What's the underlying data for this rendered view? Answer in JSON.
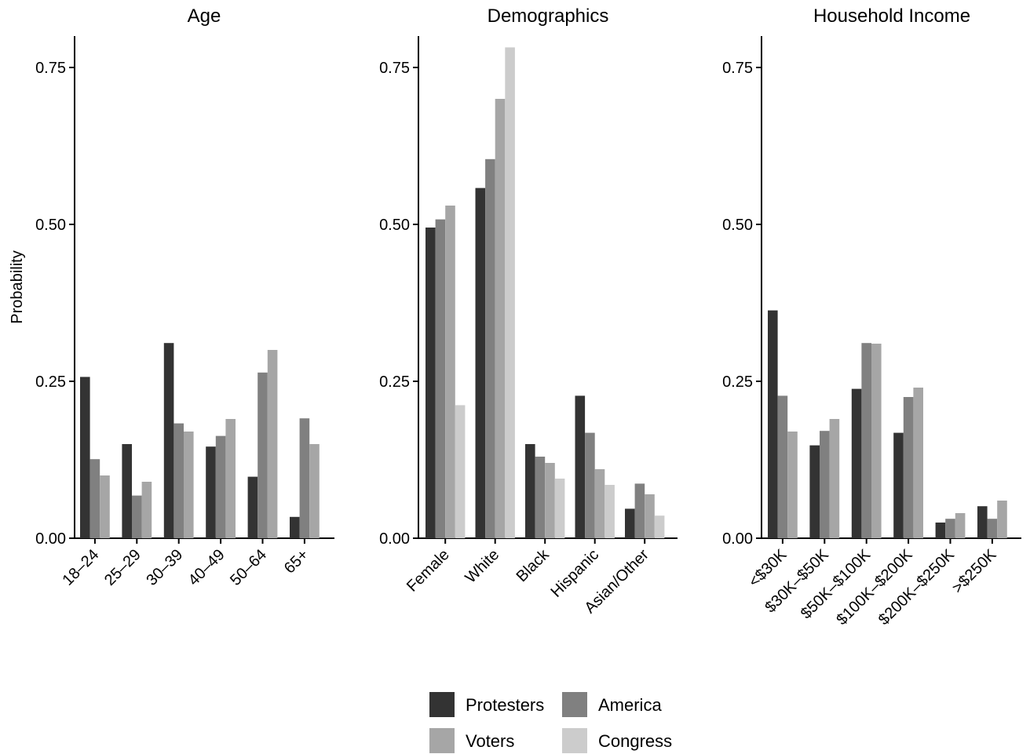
{
  "ylabel": "Probability",
  "series_colors": {
    "Protesters": "#333333",
    "America": "#808080",
    "Voters": "#a6a6a6",
    "Congress": "#cccccc"
  },
  "legend": {
    "placement": "bottom-center",
    "items": [
      "Protesters",
      "America",
      "Voters",
      "Congress"
    ]
  },
  "chart_data": [
    {
      "type": "bar",
      "title": "Age",
      "ylabel": "Probability",
      "ylim": [
        0,
        0.8
      ],
      "yticks": [
        0.0,
        0.25,
        0.5,
        0.75
      ],
      "ytick_labels": [
        "0.00",
        "0.25",
        "0.50",
        "0.75"
      ],
      "categories": [
        "18–24",
        "25–29",
        "30–39",
        "40–49",
        "50–64",
        "65+"
      ],
      "series": [
        {
          "name": "Protesters",
          "values": [
            0.257,
            0.15,
            0.311,
            0.146,
            0.098,
            0.034
          ]
        },
        {
          "name": "America",
          "values": [
            0.126,
            0.068,
            0.183,
            0.163,
            0.264,
            0.191
          ]
        },
        {
          "name": "Voters",
          "values": [
            0.1,
            0.09,
            0.17,
            0.19,
            0.3,
            0.15
          ]
        }
      ]
    },
    {
      "type": "bar",
      "title": "Demographics",
      "ylim": [
        0,
        0.8
      ],
      "yticks": [
        0.0,
        0.25,
        0.5,
        0.75
      ],
      "ytick_labels": [
        "0.00",
        "0.25",
        "0.50",
        "0.75"
      ],
      "categories": [
        "Female",
        "White",
        "Black",
        "Hispanic",
        "Asian/Other"
      ],
      "series": [
        {
          "name": "Protesters",
          "values": [
            0.495,
            0.558,
            0.15,
            0.227,
            0.047
          ]
        },
        {
          "name": "America",
          "values": [
            0.508,
            0.604,
            0.13,
            0.168,
            0.087
          ]
        },
        {
          "name": "Voters",
          "values": [
            0.53,
            0.7,
            0.12,
            0.11,
            0.07
          ]
        },
        {
          "name": "Congress",
          "values": [
            0.212,
            0.782,
            0.095,
            0.085,
            0.036
          ]
        }
      ]
    },
    {
      "type": "bar",
      "title": "Household Income",
      "ylim": [
        0,
        0.8
      ],
      "yticks": [
        0.0,
        0.25,
        0.5,
        0.75
      ],
      "ytick_labels": [
        "0.00",
        "0.25",
        "0.50",
        "0.75"
      ],
      "categories": [
        "<$30K",
        "$30K–$50K",
        "$50K–$100K",
        "$100K–$200K",
        "$200K–$250K",
        ">$250K"
      ],
      "series": [
        {
          "name": "Protesters",
          "values": [
            0.363,
            0.148,
            0.238,
            0.168,
            0.025,
            0.051
          ]
        },
        {
          "name": "America",
          "values": [
            0.227,
            0.171,
            0.311,
            0.225,
            0.031,
            0.031
          ]
        },
        {
          "name": "Voters",
          "values": [
            0.17,
            0.19,
            0.31,
            0.24,
            0.04,
            0.06
          ]
        }
      ]
    }
  ]
}
